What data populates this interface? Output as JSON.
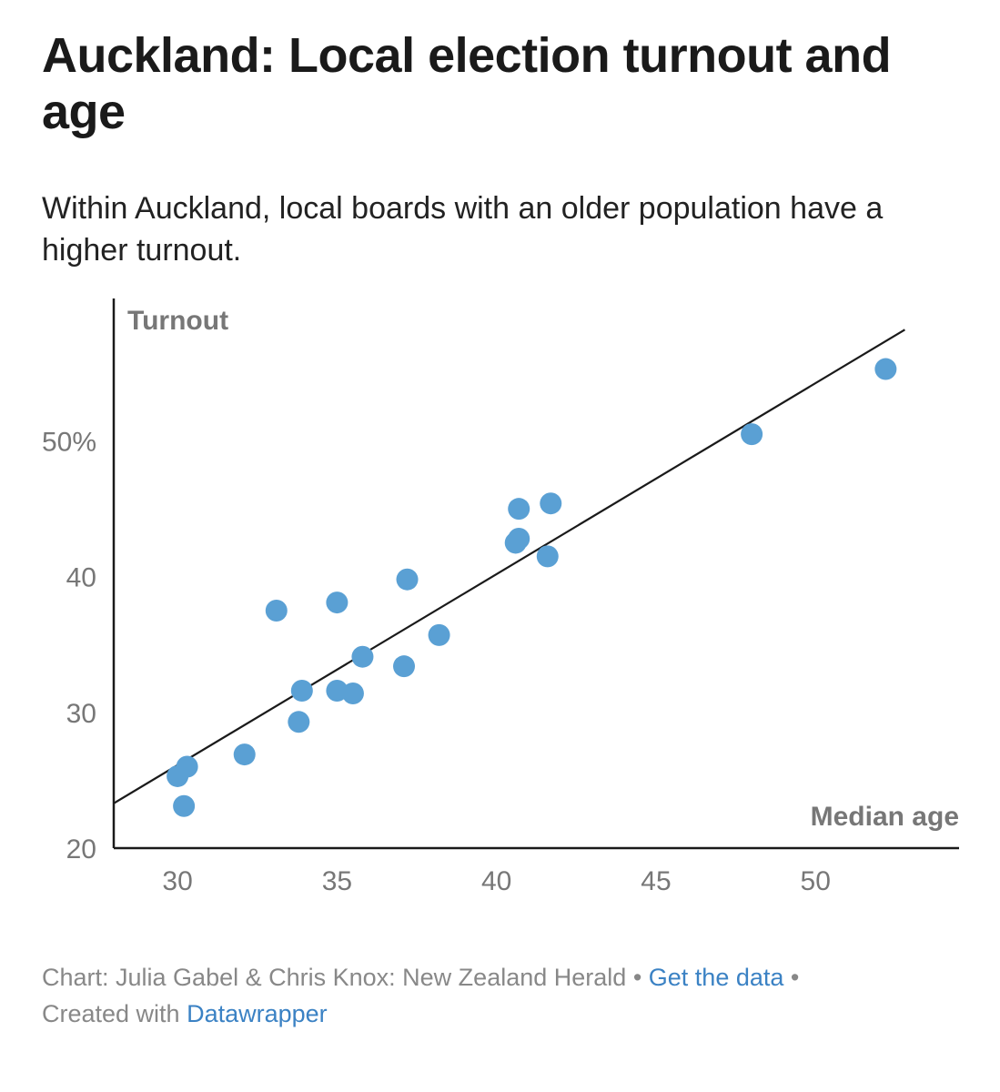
{
  "header": {
    "title": "Auckland: Local election turnout and age",
    "subtitle": "Within Auckland, local boards with an older population have a higher turnout."
  },
  "chart_data": {
    "type": "scatter",
    "xlabel": "Median age",
    "ylabel": "Turnout",
    "xlim": [
      28,
      54.5
    ],
    "ylim": [
      20,
      60.5
    ],
    "x_ticks": [
      30,
      35,
      40,
      45,
      50
    ],
    "x_tick_labels": [
      "30",
      "35",
      "40",
      "45",
      "50"
    ],
    "y_ticks": [
      20,
      30,
      40,
      50
    ],
    "y_tick_labels": [
      "20",
      "30",
      "40",
      "50%"
    ],
    "grid": false,
    "point_color": "#5aa0d4",
    "trend_line": {
      "x": [
        28,
        52.8
      ],
      "y": [
        23.3,
        58.2
      ]
    },
    "points": [
      {
        "x": 30.0,
        "y": 25.3
      },
      {
        "x": 30.3,
        "y": 26.0
      },
      {
        "x": 30.2,
        "y": 23.1
      },
      {
        "x": 32.1,
        "y": 26.9
      },
      {
        "x": 33.1,
        "y": 37.5
      },
      {
        "x": 33.8,
        "y": 29.3
      },
      {
        "x": 33.9,
        "y": 31.6
      },
      {
        "x": 35.0,
        "y": 38.1
      },
      {
        "x": 35.0,
        "y": 31.6
      },
      {
        "x": 35.5,
        "y": 31.4
      },
      {
        "x": 35.8,
        "y": 34.1
      },
      {
        "x": 37.1,
        "y": 33.4
      },
      {
        "x": 37.2,
        "y": 39.8
      },
      {
        "x": 38.2,
        "y": 35.7
      },
      {
        "x": 40.6,
        "y": 42.5
      },
      {
        "x": 40.7,
        "y": 42.8
      },
      {
        "x": 40.7,
        "y": 45.0
      },
      {
        "x": 41.6,
        "y": 41.5
      },
      {
        "x": 41.7,
        "y": 45.4
      },
      {
        "x": 48.0,
        "y": 50.5
      },
      {
        "x": 52.2,
        "y": 55.3
      }
    ]
  },
  "footer": {
    "credit": "Chart: Julia Gabel & Chris Knox: New Zealand Herald",
    "separator": "•",
    "data_link": "Get the data",
    "created_with": "Created with",
    "tool_link": "Datawrapper"
  },
  "colors": {
    "point": "#5aa0d4",
    "axis": "#1a1a1a",
    "tick_label": "#777777",
    "link": "#3b82c4"
  }
}
